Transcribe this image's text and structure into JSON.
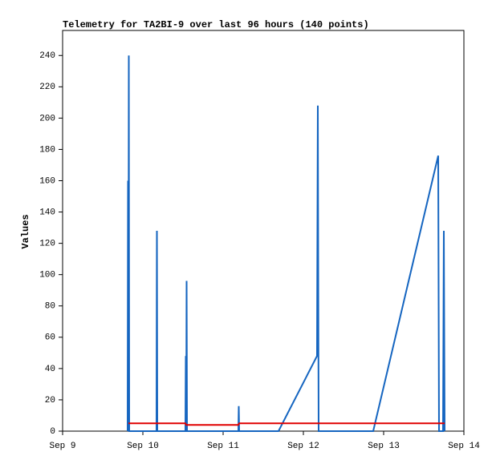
{
  "chart_data": {
    "type": "line",
    "title": "Telemetry for TA2BI-9 over last 96 hours (140 points)",
    "y_label": "Values",
    "xlim": [
      0,
      5
    ],
    "xticks": [
      {
        "value": 0,
        "label": "Sep 9"
      },
      {
        "value": 1,
        "label": "Sep 10"
      },
      {
        "value": 2,
        "label": "Sep 11"
      },
      {
        "value": 3,
        "label": "Sep 12"
      },
      {
        "value": 4,
        "label": "Sep 13"
      },
      {
        "value": 5,
        "label": "Sep 14"
      }
    ],
    "ylim": [
      0,
      256
    ],
    "yticks": [
      0,
      20,
      40,
      60,
      80,
      100,
      120,
      140,
      160,
      180,
      200,
      220,
      240
    ],
    "grid": false,
    "series": [
      {
        "color": "#1565c0",
        "x": [
          0.81,
          0.815,
          0.82,
          0.825,
          0.83,
          1.17,
          1.175,
          1.18,
          1.53,
          1.535,
          1.54,
          1.545,
          1.55,
          2.19,
          2.195,
          2.2,
          2.69,
          3.17,
          3.18,
          3.19,
          3.87,
          4.68,
          4.69,
          4.74,
          4.75,
          4.76
        ],
        "values": [
          0,
          160,
          0,
          240,
          0,
          0,
          128,
          0,
          0,
          48,
          0,
          96,
          0,
          0,
          16,
          0,
          0,
          48,
          208,
          0,
          0,
          176,
          0,
          0,
          128,
          0
        ]
      },
      {
        "color": "#e00000",
        "x": [
          0.82,
          1.53,
          1.54,
          2.19,
          2.2,
          4.76
        ],
        "values": [
          5,
          5,
          4,
          4,
          5,
          5
        ]
      }
    ]
  }
}
